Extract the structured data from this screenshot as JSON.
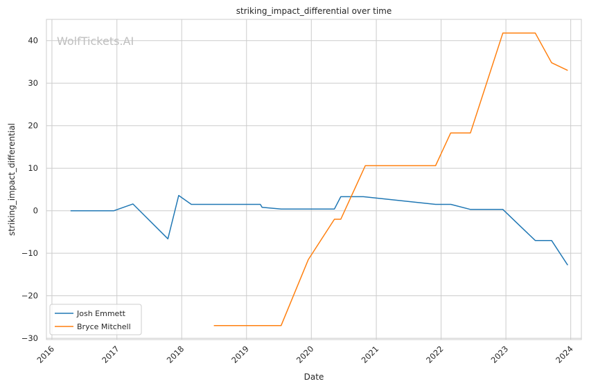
{
  "chart_data": {
    "type": "line",
    "title": "striking_impact_differential over time",
    "xlabel": "Date",
    "ylabel": "striking_impact_differential",
    "watermark": "WolfTickets.AI",
    "x_ticks": [
      "2016",
      "2017",
      "2018",
      "2019",
      "2020",
      "2021",
      "2022",
      "2023",
      "2024"
    ],
    "y_ticks": [
      "−30",
      "−20",
      "−10",
      "0",
      "10",
      "20",
      "30",
      "40"
    ],
    "xlim": [
      "2015-12-01",
      "2024-03-01"
    ],
    "ylim": [
      -30.3,
      45
    ],
    "grid": true,
    "legend_position": "lower-left",
    "series": [
      {
        "name": "Josh Emmett",
        "color": "#1f77b4",
        "points": [
          [
            "2016-04-15",
            0.0
          ],
          [
            "2016-12-15",
            0.0
          ],
          [
            "2017-04-01",
            1.6
          ],
          [
            "2017-10-15",
            -6.6
          ],
          [
            "2017-12-15",
            3.6
          ],
          [
            "2018-02-24",
            1.5
          ],
          [
            "2019-03-20",
            1.5
          ],
          [
            "2019-03-30",
            0.8
          ],
          [
            "2019-07-15",
            0.4
          ],
          [
            "2020-05-10",
            0.4
          ],
          [
            "2020-06-15",
            3.3
          ],
          [
            "2020-10-20",
            3.3
          ],
          [
            "2021-12-01",
            1.5
          ],
          [
            "2022-02-25",
            1.5
          ],
          [
            "2022-06-15",
            0.3
          ],
          [
            "2022-12-15",
            0.3
          ],
          [
            "2023-02-25",
            -2.6
          ],
          [
            "2023-06-15",
            -7.0
          ],
          [
            "2023-09-15",
            -7.0
          ],
          [
            "2023-12-15",
            -12.8
          ]
        ]
      },
      {
        "name": "Bryce Mitchell",
        "color": "#ff7f0e",
        "points": [
          [
            "2018-07-01",
            -27.0
          ],
          [
            "2019-07-15",
            -27.0
          ],
          [
            "2019-12-15",
            -11.5
          ],
          [
            "2020-05-10",
            -2.0
          ],
          [
            "2020-06-15",
            -2.0
          ],
          [
            "2020-10-31",
            10.6
          ],
          [
            "2021-12-01",
            10.6
          ],
          [
            "2022-02-24",
            18.3
          ],
          [
            "2022-06-15",
            18.3
          ],
          [
            "2022-12-15",
            41.8
          ],
          [
            "2023-06-15",
            41.8
          ],
          [
            "2023-09-15",
            34.8
          ],
          [
            "2023-12-15",
            33.0
          ]
        ]
      }
    ]
  }
}
